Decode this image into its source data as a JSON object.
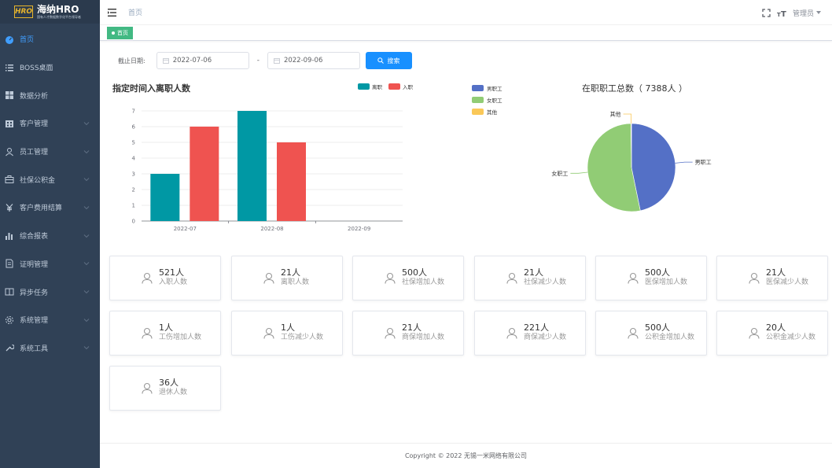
{
  "sidebar": {
    "logo_badge": "HRO",
    "logo_title": "海纳HRO",
    "logo_sub": "国有人才数据数字化平台领导者",
    "items": [
      {
        "label": "首页",
        "icon": "dashboard-icon",
        "active": true,
        "has_children": false
      },
      {
        "label": "BOSS桌面",
        "icon": "list-icon",
        "active": false,
        "has_children": false
      },
      {
        "label": "数据分析",
        "icon": "grid-icon",
        "active": false,
        "has_children": false
      },
      {
        "label": "客户管理",
        "icon": "building-icon",
        "active": false,
        "has_children": true
      },
      {
        "label": "员工管理",
        "icon": "user-icon",
        "active": false,
        "has_children": true
      },
      {
        "label": "社保公积金",
        "icon": "briefcase-icon",
        "active": false,
        "has_children": true
      },
      {
        "label": "客户费用结算",
        "icon": "yen-icon",
        "active": false,
        "has_children": true
      },
      {
        "label": "综合报表",
        "icon": "bar-chart-icon",
        "active": false,
        "has_children": true
      },
      {
        "label": "证明管理",
        "icon": "document-icon",
        "active": false,
        "has_children": true
      },
      {
        "label": "异步任务",
        "icon": "window-icon",
        "active": false,
        "has_children": true
      },
      {
        "label": "系统管理",
        "icon": "gear-icon",
        "active": false,
        "has_children": true
      },
      {
        "label": "系统工具",
        "icon": "wrench-icon",
        "active": false,
        "has_children": true
      }
    ]
  },
  "header": {
    "breadcrumb": "首页",
    "user": "管理员"
  },
  "tags": {
    "active": "首页"
  },
  "filter": {
    "label": "截止日期:",
    "start_date": "2022-07-06",
    "end_date": "2022-09-06",
    "separator": "-",
    "search_label": "搜索"
  },
  "bar_chart_title": "指定时间入离职人数",
  "pie_chart_title": "在职职工总数（ 7388人 ）",
  "chart_data": [
    {
      "type": "bar",
      "title": "指定时间入离职人数",
      "categories": [
        "2022-07",
        "2022-08",
        "2022-09"
      ],
      "series": [
        {
          "name": "离职",
          "color": "#0098a4",
          "values": [
            3,
            7,
            0
          ]
        },
        {
          "name": "入职",
          "color": "#ef5350",
          "values": [
            6,
            5,
            0
          ]
        }
      ],
      "ylim": [
        0,
        7
      ],
      "yticks": [
        "0",
        "1",
        "2",
        "3",
        "4",
        "5",
        "6",
        "7"
      ],
      "grid": true,
      "legend": "top-right"
    },
    {
      "type": "pie",
      "title": "在职职工总数（ 7388人 ）",
      "slices": [
        {
          "name": "男职工",
          "color": "#5470c6",
          "value": 3456
        },
        {
          "name": "女职工",
          "color": "#91cc75",
          "value": 3917
        },
        {
          "name": "其他",
          "color": "#fac858",
          "value": 15
        }
      ],
      "legend": "left"
    }
  ],
  "cards": [
    {
      "value": "521人",
      "label": "入职人数"
    },
    {
      "value": "21人",
      "label": "离职人数"
    },
    {
      "value": "500人",
      "label": "社保增加人数"
    },
    {
      "value": "21人",
      "label": "社保减少人数"
    },
    {
      "value": "500人",
      "label": "医保增加人数"
    },
    {
      "value": "21人",
      "label": "医保减少人数"
    },
    {
      "value": "1人",
      "label": "工伤增加人数"
    },
    {
      "value": "1人",
      "label": "工伤减少人数"
    },
    {
      "value": "21人",
      "label": "商保增加人数"
    },
    {
      "value": "221人",
      "label": "商保减少人数"
    },
    {
      "value": "500人",
      "label": "公积金增加人数"
    },
    {
      "value": "20人",
      "label": "公积金减少人数"
    },
    {
      "value": "36人",
      "label": "退休人数"
    }
  ],
  "footer": "Copyright © 2022 无锡一米网络有限公司"
}
